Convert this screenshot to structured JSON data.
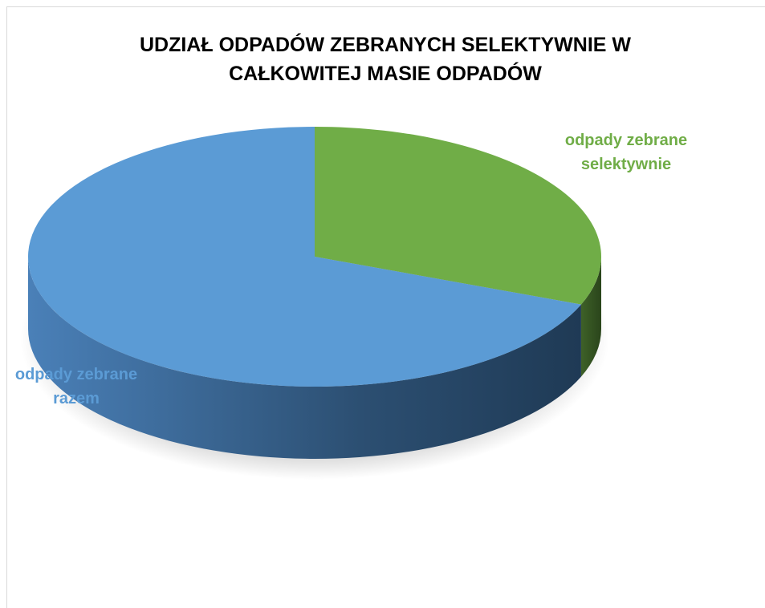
{
  "chart_data": {
    "type": "pie",
    "title": "UDZIAŁ ODPADÓW ZEBRANYCH SELEKTYWNIE W CAŁKOWITEJ MASIE ODPADÓW",
    "categories": [
      "odpady zebrane selektywnie",
      "odpady zebrane razem"
    ],
    "values": [
      31,
      69
    ],
    "colors": [
      "#70ad47",
      "#5b9bd5"
    ]
  }
}
